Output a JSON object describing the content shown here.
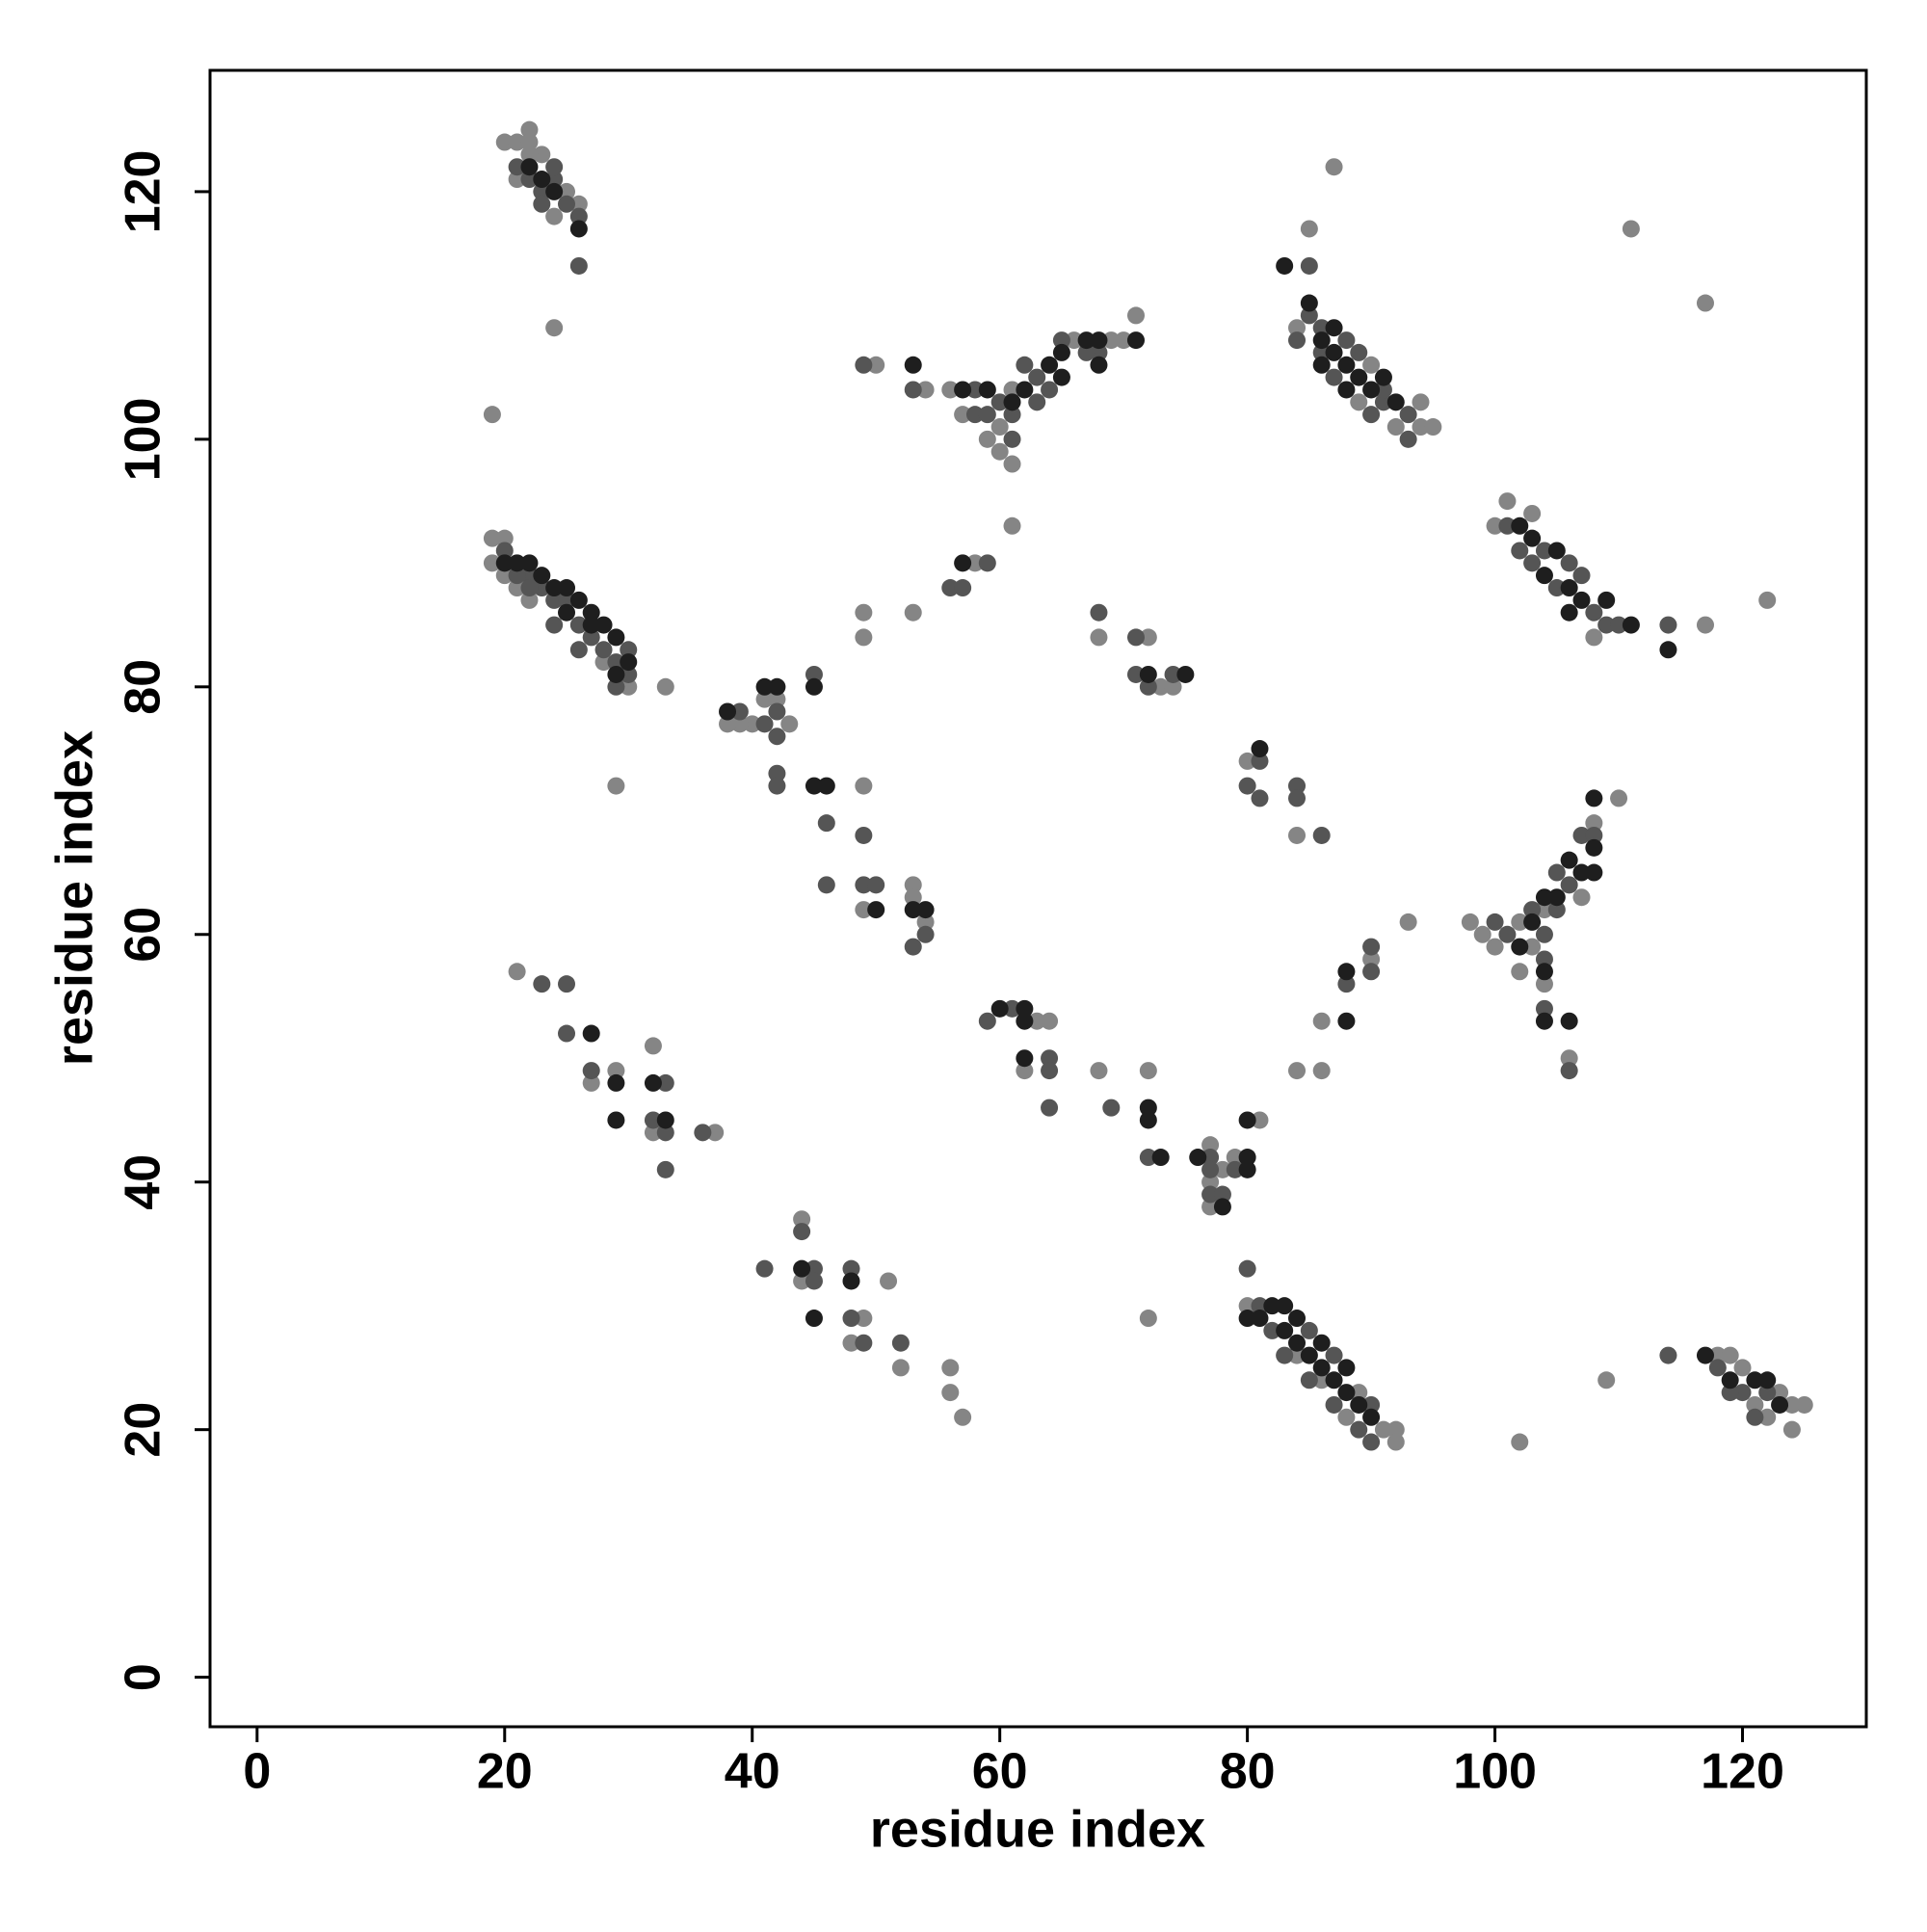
{
  "chart_data": {
    "type": "scatter",
    "x_label": "residue index",
    "y_label": "residue index",
    "xlim": [
      -3.8,
      130
    ],
    "ylim": [
      -4,
      129.8
    ],
    "xticks": [
      0,
      20,
      40,
      60,
      80,
      100,
      120
    ],
    "yticks": [
      0,
      20,
      40,
      60,
      80,
      100,
      120
    ],
    "grid": false,
    "series": [
      {
        "color": "#858585",
        "x": [
          20,
          21,
          22,
          22,
          23,
          21,
          24,
          25,
          26,
          19,
          24,
          22,
          19,
          20,
          19,
          20,
          21,
          30,
          29,
          33,
          28,
          22,
          40,
          41,
          42,
          43,
          39,
          38,
          49,
          49,
          53,
          53,
          54,
          49,
          49,
          53,
          58,
          61,
          50,
          54,
          56,
          57,
          59,
          60,
          60,
          61,
          61,
          66,
          69,
          70,
          71,
          68,
          72,
          73,
          74,
          85,
          87,
          84,
          89,
          90,
          92,
          94,
          94,
          95,
          100,
          101,
          103,
          108,
          117,
          122,
          111,
          117,
          98,
          99,
          100,
          102,
          102,
          103,
          104,
          104,
          106,
          107,
          108,
          110,
          93,
          80,
          84,
          86,
          86,
          84,
          90,
          81,
          63,
          64,
          62,
          68,
          72,
          77,
          77,
          77,
          78,
          79,
          21,
          27,
          29,
          32,
          32,
          37,
          44,
          44,
          49,
          48,
          51,
          52,
          56,
          56,
          57,
          72,
          80,
          84,
          86,
          88,
          89,
          91,
          92,
          92,
          102,
          109,
          118,
          119,
          120,
          121,
          123,
          124,
          125,
          124,
          122
        ],
        "y": [
          124,
          124,
          125,
          124,
          123,
          121,
          118,
          120,
          119,
          102,
          109,
          123,
          92,
          92,
          90,
          89,
          88,
          80,
          72,
          80,
          82,
          87,
          77,
          79,
          79,
          77,
          77,
          77,
          72,
          62,
          64,
          63,
          61,
          86,
          84,
          86,
          90,
          93,
          106,
          104,
          104,
          102,
          100,
          101,
          99,
          104,
          98,
          108,
          108,
          108,
          110,
          84,
          84,
          80,
          80,
          117,
          122,
          109,
          103,
          106,
          101,
          103,
          101,
          101,
          93,
          95,
          94,
          84,
          85,
          87,
          117,
          111,
          61,
          60,
          59,
          61,
          57,
          59,
          62,
          56,
          50,
          63,
          69,
          71,
          61,
          74,
          68,
          53,
          49,
          49,
          58,
          45,
          53,
          53,
          49,
          49,
          49,
          43,
          40,
          38,
          41,
          42,
          57,
          48,
          49,
          51,
          44,
          44,
          37,
          32,
          29,
          27,
          32,
          25,
          25,
          23,
          21,
          29,
          30,
          26,
          24,
          21,
          23,
          20,
          20,
          19,
          19,
          24,
          26,
          26,
          25,
          22,
          23,
          22,
          22,
          20,
          21
        ]
      },
      {
        "color": "#555555",
        "x": [
          21,
          22,
          23,
          24,
          24,
          25,
          26,
          26,
          23,
          20,
          22,
          23,
          24,
          26,
          28,
          30,
          26,
          24,
          22,
          29,
          25,
          21,
          27,
          29,
          30,
          39,
          42,
          42,
          41,
          45,
          42,
          42,
          46,
          46,
          49,
          49,
          50,
          54,
          53,
          56,
          57,
          59,
          49,
          53,
          58,
          58,
          59,
          60,
          61,
          61,
          62,
          63,
          63,
          64,
          65,
          68,
          67,
          68,
          71,
          71,
          72,
          74,
          85,
          84,
          85,
          86,
          86,
          87,
          88,
          89,
          90,
          91,
          93,
          93,
          91,
          101,
          102,
          103,
          104,
          105,
          106,
          107,
          108,
          109,
          110,
          114,
          100,
          101,
          103,
          104,
          104,
          104,
          105,
          105,
          106,
          106,
          107,
          108,
          80,
          81,
          81,
          84,
          84,
          86,
          88,
          90,
          90,
          59,
          61,
          64,
          64,
          64,
          69,
          72,
          77,
          77,
          77,
          78,
          79,
          23,
          25,
          25,
          27,
          33,
          32,
          33,
          33,
          36,
          41,
          44,
          45,
          45,
          48,
          48,
          49,
          52,
          80,
          81,
          82,
          83,
          85,
          85,
          87,
          87,
          89,
          90,
          90,
          114,
          118,
          120,
          122,
          119,
          121
        ],
        "y": [
          122,
          121,
          120,
          121,
          122,
          119,
          118,
          114,
          119,
          91,
          89,
          88,
          87,
          85,
          83,
          83,
          83,
          85,
          88,
          80,
          87,
          89,
          84,
          82,
          81,
          78,
          78,
          76,
          77,
          81,
          73,
          72,
          69,
          64,
          68,
          64,
          64,
          60,
          59,
          88,
          88,
          90,
          106,
          104,
          104,
          102,
          102,
          103,
          102,
          100,
          106,
          105,
          103,
          104,
          108,
          107,
          107,
          86,
          84,
          81,
          80,
          81,
          114,
          108,
          110,
          109,
          107,
          105,
          108,
          107,
          102,
          103,
          102,
          100,
          104,
          93,
          91,
          90,
          91,
          88,
          90,
          89,
          86,
          85,
          85,
          85,
          61,
          60,
          62,
          60,
          58,
          54,
          65,
          62,
          64,
          49,
          68,
          68,
          72,
          74,
          71,
          72,
          71,
          68,
          56,
          59,
          57,
          53,
          54,
          50,
          49,
          46,
          46,
          42,
          42,
          41,
          39,
          39,
          41,
          56,
          56,
          52,
          49,
          48,
          45,
          44,
          41,
          44,
          33,
          36,
          33,
          32,
          33,
          29,
          27,
          27,
          33,
          30,
          28,
          26,
          28,
          24,
          26,
          22,
          20,
          22,
          19,
          26,
          25,
          23,
          23,
          23,
          21
        ]
      },
      {
        "color": "#1e1e1e",
        "x": [
          22,
          23,
          24,
          26,
          20,
          21,
          22,
          23,
          24,
          25,
          26,
          27,
          28,
          29,
          30,
          29,
          25,
          27,
          38,
          41,
          42,
          45,
          45,
          46,
          50,
          53,
          54,
          57,
          53,
          57,
          59,
          61,
          62,
          64,
          65,
          65,
          67,
          68,
          68,
          71,
          72,
          75,
          83,
          85,
          86,
          86,
          87,
          87,
          88,
          88,
          89,
          90,
          91,
          92,
          102,
          103,
          104,
          105,
          106,
          106,
          107,
          109,
          111,
          114,
          102,
          103,
          104,
          104,
          104,
          105,
          106,
          106,
          107,
          108,
          108,
          108,
          81,
          88,
          88,
          80,
          60,
          62,
          62,
          62,
          72,
          72,
          73,
          76,
          78,
          80,
          80,
          27,
          29,
          29,
          32,
          33,
          44,
          45,
          48,
          80,
          81,
          82,
          83,
          83,
          84,
          84,
          85,
          86,
          86,
          87,
          88,
          88,
          89,
          90,
          117,
          119,
          121,
          122,
          123
        ],
        "y": [
          122,
          121,
          120,
          117,
          90,
          90,
          90,
          89,
          88,
          88,
          87,
          86,
          85,
          84,
          82,
          81,
          86,
          85,
          78,
          80,
          80,
          80,
          72,
          72,
          62,
          62,
          62,
          90,
          106,
          104,
          104,
          103,
          104,
          106,
          107,
          105,
          108,
          108,
          106,
          108,
          81,
          81,
          114,
          111,
          108,
          106,
          109,
          107,
          106,
          104,
          105,
          104,
          105,
          103,
          93,
          92,
          89,
          91,
          88,
          86,
          87,
          87,
          85,
          83,
          59,
          61,
          63,
          57,
          53,
          63,
          66,
          53,
          65,
          71,
          67,
          65,
          75,
          57,
          53,
          45,
          54,
          54,
          53,
          50,
          46,
          45,
          42,
          42,
          38,
          42,
          41,
          52,
          48,
          45,
          48,
          45,
          33,
          29,
          32,
          29,
          29,
          30,
          30,
          28,
          29,
          27,
          26,
          27,
          25,
          24,
          25,
          23,
          22,
          21,
          26,
          24,
          24,
          24,
          22
        ]
      }
    ]
  }
}
